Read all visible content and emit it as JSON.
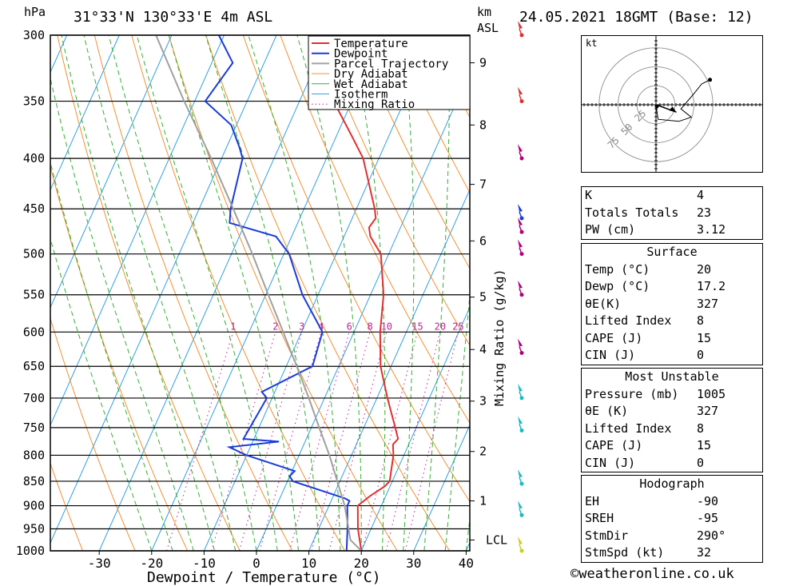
{
  "header": {
    "hpa_label": "hPa",
    "location": "31°33'N  130°33'E  4m  ASL",
    "km_label": "km",
    "asl_label": "ASL",
    "datetime": "24.05.2021  18GMT  (Base: 12)"
  },
  "chart_data": {
    "type": "line",
    "subtype": "skew-T log-P diagram",
    "xlabel": "Dewpoint / Temperature (°C)",
    "ylabel": "hPa",
    "x_ticks": [
      -30,
      -20,
      -10,
      0,
      10,
      20,
      30,
      40
    ],
    "pressure_levels": [
      300,
      350,
      400,
      450,
      500,
      550,
      600,
      650,
      700,
      750,
      800,
      850,
      900,
      950,
      1000
    ],
    "height_km_ticks": [
      {
        "label": "9",
        "p": 320
      },
      {
        "label": "8",
        "p": 370
      },
      {
        "label": "7",
        "p": 425
      },
      {
        "label": "6",
        "p": 485
      },
      {
        "label": "5",
        "p": 553
      },
      {
        "label": "4",
        "p": 625
      },
      {
        "label": "3",
        "p": 705
      },
      {
        "label": "2",
        "p": 793
      },
      {
        "label": "1",
        "p": 890
      }
    ],
    "lcl": {
      "label": "LCL",
      "p": 975
    },
    "mixing_ratio_label": "Mixing Ratio (g/kg)",
    "mixing_ratio_values": [
      1,
      2,
      3,
      4,
      6,
      8,
      10,
      15,
      20,
      25
    ],
    "legend": [
      "Temperature",
      "Dewpoint",
      "Parcel Trajectory",
      "Dry Adiabat",
      "Wet Adiabat",
      "Isotherm",
      "Mixing Ratio"
    ],
    "colors": {
      "temperature": "#e03030",
      "dewpoint": "#1a3cd8",
      "parcel": "#a0a0a0",
      "dry_adiabat": "#f09030",
      "wet_adiabat": "#30b030",
      "isotherm": "#30a0e0",
      "mixing_ratio": "#c0209a"
    },
    "series": [
      {
        "name": "Temperature",
        "points": [
          [
            1000,
            20
          ],
          [
            950,
            17.5
          ],
          [
            900,
            15.5
          ],
          [
            880,
            17
          ],
          [
            860,
            19
          ],
          [
            850,
            19.5
          ],
          [
            800,
            18
          ],
          [
            780,
            17
          ],
          [
            770,
            17.5
          ],
          [
            750,
            16
          ],
          [
            700,
            12
          ],
          [
            650,
            8
          ],
          [
            600,
            5
          ],
          [
            550,
            2.5
          ],
          [
            500,
            -1.5
          ],
          [
            480,
            -5
          ],
          [
            470,
            -6
          ],
          [
            460,
            -5.5
          ],
          [
            450,
            -6.5
          ],
          [
            400,
            -13
          ],
          [
            380,
            -17
          ],
          [
            350,
            -23.5
          ],
          [
            340,
            -25
          ]
        ]
      },
      {
        "name": "Dewpoint",
        "points": [
          [
            1000,
            17.2
          ],
          [
            950,
            15.5
          ],
          [
            900,
            13.5
          ],
          [
            890,
            13.5
          ],
          [
            885,
            12.5
          ],
          [
            850,
            1
          ],
          [
            840,
            0
          ],
          [
            830,
            0.5
          ],
          [
            800,
            -10
          ],
          [
            785,
            -14
          ],
          [
            775,
            -5
          ],
          [
            770,
            -12
          ],
          [
            700,
            -11
          ],
          [
            690,
            -12.5
          ],
          [
            650,
            -5
          ],
          [
            600,
            -6
          ],
          [
            550,
            -13
          ],
          [
            500,
            -19
          ],
          [
            480,
            -23
          ],
          [
            465,
            -33
          ],
          [
            450,
            -34
          ],
          [
            400,
            -36
          ],
          [
            390,
            -37.5
          ],
          [
            370,
            -41
          ],
          [
            350,
            -48
          ],
          [
            320,
            -46
          ],
          [
            300,
            -51
          ]
        ]
      },
      {
        "name": "Parcel Trajectory",
        "points": [
          [
            1000,
            20
          ],
          [
            975,
            17
          ],
          [
            900,
            13
          ],
          [
            850,
            9.5
          ],
          [
            800,
            5.8
          ],
          [
            750,
            1.5
          ],
          [
            700,
            -3
          ],
          [
            650,
            -8
          ],
          [
            600,
            -13.5
          ],
          [
            550,
            -19.5
          ],
          [
            500,
            -26
          ],
          [
            450,
            -33.5
          ],
          [
            400,
            -42
          ],
          [
            350,
            -52
          ],
          [
            300,
            -63
          ]
        ]
      }
    ],
    "wind_barbs": [
      {
        "p": 300,
        "color": "#e03030"
      },
      {
        "p": 350,
        "color": "#e03030"
      },
      {
        "p": 400,
        "color": "#b00080"
      },
      {
        "p": 460,
        "color": "#1a3cd8"
      },
      {
        "p": 475,
        "color": "#b00080"
      },
      {
        "p": 500,
        "color": "#b00080"
      },
      {
        "p": 550,
        "color": "#b00080"
      },
      {
        "p": 630,
        "color": "#b00080"
      },
      {
        "p": 700,
        "color": "#20b8c8"
      },
      {
        "p": 755,
        "color": "#20b8c8"
      },
      {
        "p": 855,
        "color": "#20b8c8"
      },
      {
        "p": 920,
        "color": "#20b8c8"
      },
      {
        "p": 1000,
        "color": "#c8d020"
      }
    ],
    "hodograph": {
      "unit_label": "kt",
      "ring_labels": [
        "25",
        "50",
        "75"
      ],
      "trace": [
        [
          0,
          0
        ],
        [
          1,
          -7
        ],
        [
          11,
          -8
        ],
        [
          17,
          -6
        ],
        [
          12,
          -2
        ],
        [
          18,
          5
        ],
        [
          22,
          10
        ],
        [
          26,
          12
        ]
      ],
      "storm_motion": {
        "dir_deg": 290,
        "speed_kt": 32
      }
    }
  },
  "indices": [
    {
      "label": "K",
      "value": "4"
    },
    {
      "label": "Totals Totals",
      "value": "23"
    },
    {
      "label": "PW (cm)",
      "value": "3.12"
    }
  ],
  "surface": {
    "title": "Surface",
    "rows": [
      {
        "label": "Temp (°C)",
        "value": "20"
      },
      {
        "label": "Dewp (°C)",
        "value": "17.2"
      },
      {
        "label": "θE(K)",
        "value": "327"
      },
      {
        "label": "Lifted Index",
        "value": "8"
      },
      {
        "label": "CAPE (J)",
        "value": "15"
      },
      {
        "label": "CIN (J)",
        "value": "0"
      }
    ]
  },
  "most_unstable": {
    "title": "Most Unstable",
    "rows": [
      {
        "label": "Pressure (mb)",
        "value": "1005"
      },
      {
        "label": "θE (K)",
        "value": "327"
      },
      {
        "label": "Lifted Index",
        "value": "8"
      },
      {
        "label": "CAPE (J)",
        "value": "15"
      },
      {
        "label": "CIN (J)",
        "value": "0"
      }
    ]
  },
  "hodograph_table": {
    "title": "Hodograph",
    "rows": [
      {
        "label": "EH",
        "value": "-90"
      },
      {
        "label": "SREH",
        "value": "-95"
      },
      {
        "label": "StmDir",
        "value": "290°"
      },
      {
        "label": "StmSpd (kt)",
        "value": "32"
      }
    ]
  },
  "credit": "©weatheronline.co.uk"
}
